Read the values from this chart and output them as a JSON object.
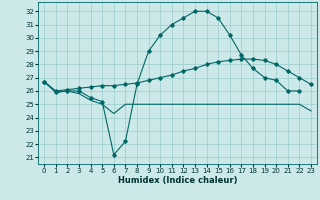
{
  "xlabel": "Humidex (Indice chaleur)",
  "bg_color": "#cce8e8",
  "grid_color": "#99cccc",
  "line_color": "#006666",
  "xlim": [
    -0.5,
    23.5
  ],
  "ylim": [
    20.5,
    32.7
  ],
  "yticks": [
    21,
    22,
    23,
    24,
    25,
    26,
    27,
    28,
    29,
    30,
    31,
    32
  ],
  "xticks": [
    0,
    1,
    2,
    3,
    4,
    5,
    6,
    7,
    8,
    9,
    10,
    11,
    12,
    13,
    14,
    15,
    16,
    17,
    18,
    19,
    20,
    21,
    22,
    23
  ],
  "series": [
    {
      "x": [
        0,
        1,
        2,
        3,
        4,
        5,
        6,
        7,
        8,
        9,
        10,
        11,
        12,
        13,
        14,
        15,
        16,
        17,
        18,
        19,
        20,
        21,
        22
      ],
      "y": [
        26.7,
        25.9,
        26.0,
        26.0,
        25.5,
        25.2,
        21.2,
        22.2,
        26.5,
        29.0,
        30.2,
        31.0,
        31.5,
        32.0,
        32.0,
        31.5,
        30.2,
        28.7,
        27.7,
        27.0,
        26.8,
        26.0,
        26.0
      ],
      "has_markers": true
    },
    {
      "x": [
        0,
        1,
        2,
        3,
        4,
        5,
        6,
        7,
        8,
        9,
        10,
        11,
        12,
        13,
        14,
        15,
        16,
        17,
        18,
        19,
        20,
        21,
        22,
        23
      ],
      "y": [
        26.7,
        25.9,
        26.0,
        25.8,
        25.3,
        25.0,
        24.3,
        25.0,
        25.0,
        25.0,
        25.0,
        25.0,
        25.0,
        25.0,
        25.0,
        25.0,
        25.0,
        25.0,
        25.0,
        25.0,
        25.0,
        25.0,
        25.0,
        24.5
      ],
      "has_markers": false
    },
    {
      "x": [
        0,
        1,
        2,
        3,
        4,
        5,
        6,
        7,
        8,
        9,
        10,
        11,
        12,
        13,
        14,
        15,
        16,
        17,
        18,
        19,
        20,
        21,
        22,
        23
      ],
      "y": [
        26.7,
        26.0,
        26.1,
        26.2,
        26.3,
        26.4,
        26.4,
        26.5,
        26.6,
        26.8,
        27.0,
        27.2,
        27.5,
        27.7,
        28.0,
        28.2,
        28.3,
        28.4,
        28.4,
        28.3,
        28.0,
        27.5,
        27.0,
        26.5
      ],
      "has_markers": true
    }
  ]
}
